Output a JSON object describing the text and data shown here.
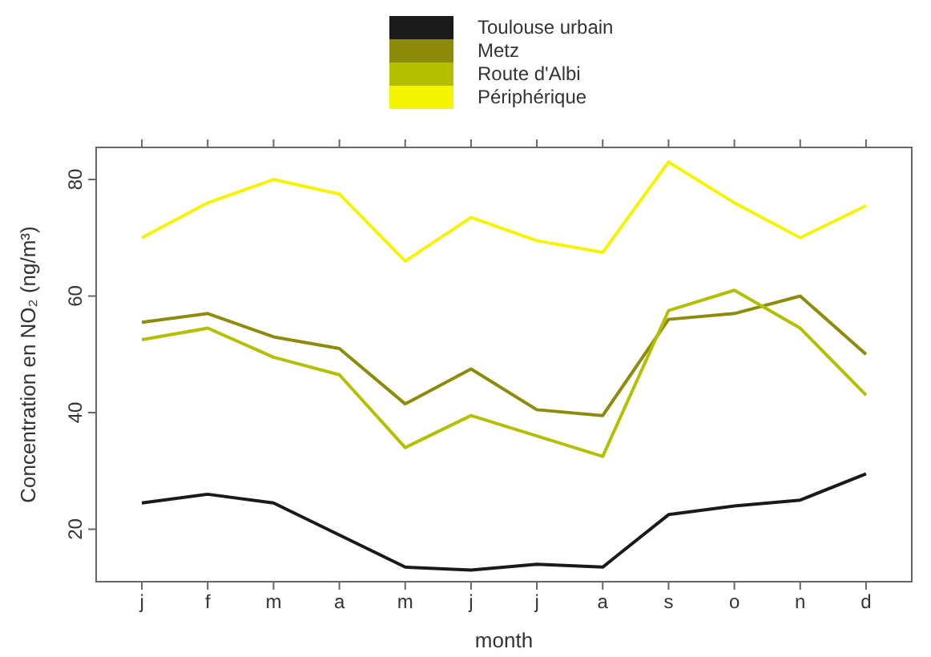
{
  "chart_data": {
    "type": "line",
    "xlabel": "month",
    "ylabel": "Concentration en NO₂  (ng/m³)",
    "categories": [
      "j",
      "f",
      "m",
      "a",
      "m",
      "j",
      "j",
      "a",
      "s",
      "o",
      "n",
      "d"
    ],
    "ylim": [
      11,
      85.5
    ],
    "yticks": [
      20,
      40,
      60,
      80
    ],
    "legend": "top",
    "grid": false,
    "series": [
      {
        "name": "Toulouse urbain",
        "color": "#1a1a1a",
        "values": [
          24.5,
          26,
          24.5,
          19,
          13.5,
          13,
          14,
          13.5,
          22.5,
          24,
          25,
          29.5
        ]
      },
      {
        "name": "Metz",
        "color": "#8c8c0a",
        "values": [
          55.5,
          57,
          53,
          51,
          41.5,
          47.5,
          40.5,
          39.5,
          56,
          57,
          60,
          50
        ]
      },
      {
        "name": "Route d'Albi",
        "color": "#b3c000",
        "values": [
          52.5,
          54.5,
          49.5,
          46.5,
          34,
          39.5,
          36,
          32.5,
          57.5,
          61,
          54.5,
          43
        ]
      },
      {
        "name": "Périphérique",
        "color": "#f5f500",
        "values": [
          70,
          76,
          80,
          77.5,
          66,
          73.5,
          69.5,
          67.5,
          83,
          76,
          70,
          75.5
        ]
      }
    ]
  }
}
